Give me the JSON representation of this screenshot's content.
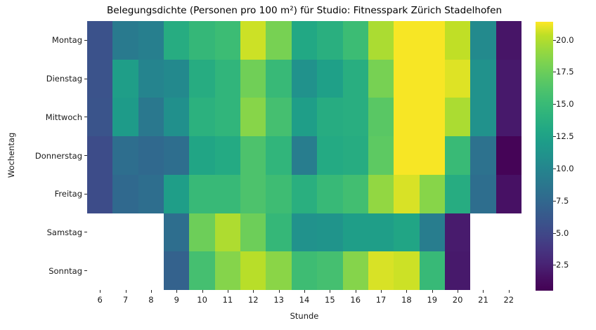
{
  "figure": {
    "background": "#ffffff"
  },
  "chart_data": {
    "type": "heatmap",
    "title": "Belegungsdichte (Personen pro 100 m²) für Studio: Fitnesspark Zürich Stadelhofen",
    "xlabel": "Stunde",
    "ylabel": "Wochentag",
    "x_categories": [
      "6",
      "7",
      "8",
      "9",
      "10",
      "11",
      "12",
      "13",
      "14",
      "15",
      "16",
      "17",
      "18",
      "19",
      "20",
      "21",
      "22"
    ],
    "y_categories": [
      "Montag",
      "Dienstag",
      "Mittwoch",
      "Donnerstag",
      "Freitag",
      "Samstag",
      "Sonntag"
    ],
    "values": [
      [
        5.7,
        9.0,
        9.5,
        13.5,
        14.7,
        15.2,
        20.6,
        18.0,
        13.0,
        13.8,
        15.2,
        19.8,
        21.3,
        21.3,
        20.4,
        10.4,
        1.8
      ],
      [
        5.8,
        12.2,
        9.9,
        10.3,
        13.5,
        14.4,
        17.7,
        14.9,
        11.0,
        12.3,
        13.7,
        18.0,
        21.3,
        21.3,
        20.9,
        11.0,
        2.0
      ],
      [
        5.9,
        11.9,
        8.9,
        10.9,
        14.0,
        14.4,
        18.6,
        15.7,
        12.2,
        13.5,
        13.7,
        16.7,
        21.3,
        21.3,
        19.8,
        11.0,
        2.0
      ],
      [
        5.3,
        8.0,
        7.6,
        8.0,
        12.8,
        13.2,
        16.1,
        14.4,
        9.3,
        13.2,
        13.5,
        16.9,
        21.3,
        21.3,
        15.0,
        8.3,
        0.7
      ],
      [
        5.3,
        7.6,
        8.0,
        12.2,
        14.9,
        14.9,
        16.1,
        15.3,
        13.8,
        14.9,
        15.5,
        19.0,
        20.8,
        18.6,
        13.5,
        8.0,
        1.6
      ],
      [
        null,
        null,
        null,
        8.0,
        17.6,
        19.9,
        17.6,
        14.7,
        11.0,
        11.2,
        12.2,
        12.2,
        12.8,
        9.3,
        2.1,
        null,
        null
      ],
      [
        null,
        null,
        null,
        7.0,
        15.7,
        18.5,
        20.2,
        18.7,
        15.3,
        15.7,
        18.5,
        20.8,
        20.6,
        14.9,
        2.0,
        null,
        null
      ]
    ],
    "vmin": 0.5,
    "vmax": 21.4,
    "colormap": "viridis",
    "colormap_stops": [
      "#440154",
      "#471063",
      "#482475",
      "#463480",
      "#414487",
      "#3b528b",
      "#355f8d",
      "#2f6c8e",
      "#2a788e",
      "#25848e",
      "#21918c",
      "#1e9c89",
      "#22a884",
      "#2db27d",
      "#3bbb75",
      "#4ec36b",
      "#64cb5e",
      "#7ed34f",
      "#9bd93c",
      "#bddf26",
      "#fde725"
    ],
    "grid": false,
    "legend_position": "right-colorbar",
    "colorbar": {
      "ticks": [
        20.0,
        17.5,
        15.0,
        12.5,
        10.0,
        7.5,
        5.0,
        2.5
      ],
      "tick_labels": [
        "20.0",
        "17.5",
        "15.0",
        "12.5",
        "10.0",
        "7.5",
        "5.0",
        "2.5"
      ]
    }
  }
}
